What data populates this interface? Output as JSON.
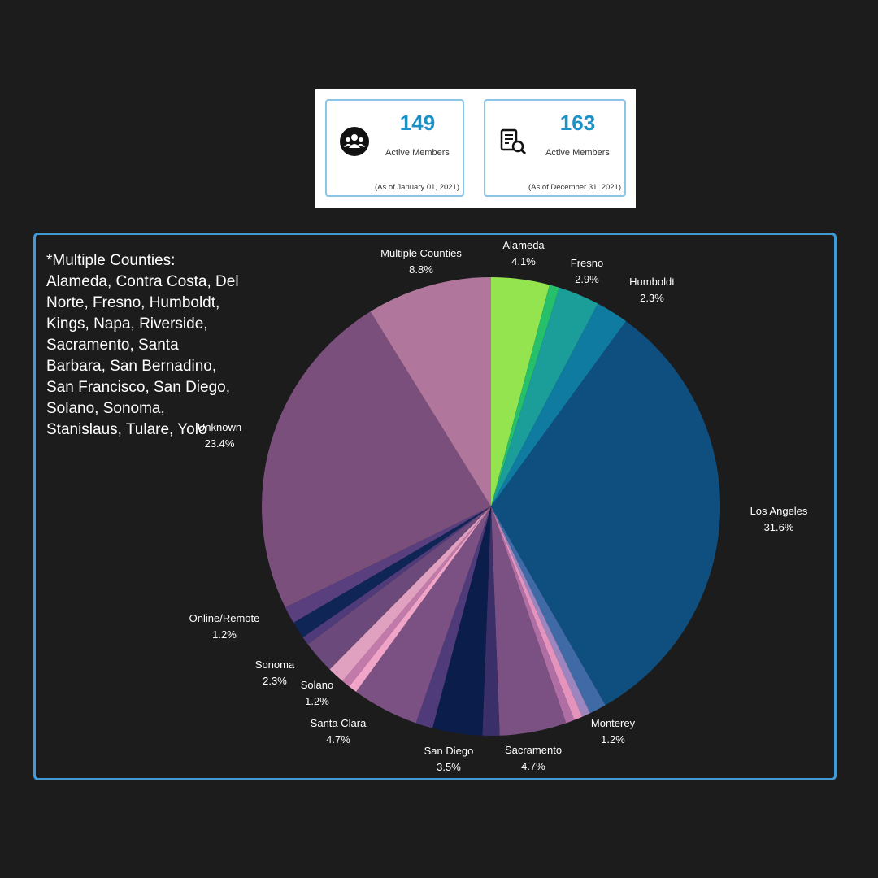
{
  "stats": [
    {
      "number": "149",
      "label": "Active Members",
      "date": "(As of January  01, 2021)",
      "icon": "group-icon"
    },
    {
      "number": "163",
      "label": "Active Members",
      "date": "(As of December  31, 2021)",
      "icon": "report-search-icon"
    }
  ],
  "note": {
    "title": "*Multiple Counties:",
    "text": "Alameda, Contra Costa, Del Norte, Fresno, Humboldt, Kings, Napa, Riverside, Sacramento, Santa Barbara, San Bernadino, San Francisco, San Diego, Solano, Sonoma, Stanislaus, Tulare, Yolo"
  },
  "chart_data": {
    "type": "pie",
    "title": "",
    "start_angle_deg": 0,
    "direction": "clockwise",
    "slices": [
      {
        "label": "Alameda",
        "value": 4.1,
        "pct": "4.1%",
        "color": "#93e44f",
        "show_label": true
      },
      {
        "label": "",
        "value": 0.7,
        "pct": "",
        "color": "#27c06a",
        "show_label": false
      },
      {
        "label": "Fresno",
        "value": 2.9,
        "pct": "2.9%",
        "color": "#1b9e9a",
        "show_label": true
      },
      {
        "label": "Humboldt",
        "value": 2.3,
        "pct": "2.3%",
        "color": "#0f7ba0",
        "show_label": true
      },
      {
        "label": "Los Angeles",
        "value": 31.6,
        "pct": "31.6%",
        "color": "#0f4f7f",
        "show_label": true
      },
      {
        "label": "Monterey",
        "value": 1.2,
        "pct": "1.2%",
        "color": "#3f6aa6",
        "show_label": true
      },
      {
        "label": "",
        "value": 0.6,
        "pct": "",
        "color": "#9d86c0",
        "show_label": false
      },
      {
        "label": "",
        "value": 0.6,
        "pct": "",
        "color": "#e493bd",
        "show_label": false
      },
      {
        "label": "",
        "value": 0.6,
        "pct": "",
        "color": "#b06fa4",
        "show_label": false
      },
      {
        "label": "Sacramento",
        "value": 4.7,
        "pct": "4.7%",
        "color": "#7b5183",
        "show_label": true
      },
      {
        "label": "",
        "value": 1.2,
        "pct": "",
        "color": "#3b2f6a",
        "show_label": false
      },
      {
        "label": "San Diego",
        "value": 3.5,
        "pct": "3.5%",
        "color": "#0b1d4a",
        "show_label": true
      },
      {
        "label": "",
        "value": 1.2,
        "pct": "",
        "color": "#4f3a7a",
        "show_label": false
      },
      {
        "label": "Santa Clara",
        "value": 4.7,
        "pct": "4.7%",
        "color": "#7b5183",
        "show_label": true
      },
      {
        "label": "",
        "value": 0.6,
        "pct": "",
        "color": "#f0a5c8",
        "show_label": false
      },
      {
        "label": "",
        "value": 0.6,
        "pct": "",
        "color": "#c27aaa",
        "show_label": false
      },
      {
        "label": "Solano",
        "value": 1.2,
        "pct": "1.2%",
        "color": "#e0a0bf",
        "show_label": true
      },
      {
        "label": "Sonoma",
        "value": 2.3,
        "pct": "2.3%",
        "color": "#6b4a7b",
        "show_label": true
      },
      {
        "label": "",
        "value": 0.6,
        "pct": "",
        "color": "#4f3a7a",
        "show_label": false
      },
      {
        "label": "Online/Remote",
        "value": 1.2,
        "pct": "1.2%",
        "color": "#0f2555",
        "show_label": true
      },
      {
        "label": "",
        "value": 1.2,
        "pct": "",
        "color": "#5a3f7e",
        "show_label": false
      },
      {
        "label": "Unknown",
        "value": 23.4,
        "pct": "23.4%",
        "color": "#7a4f7c",
        "show_label": true
      },
      {
        "label": "Multiple Counties",
        "value": 8.8,
        "pct": "8.8%",
        "color": "#b0769b",
        "show_label": true
      }
    ]
  }
}
